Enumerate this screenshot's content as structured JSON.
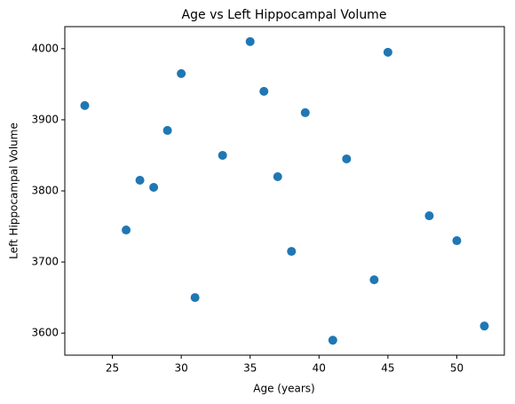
{
  "chart_data": {
    "type": "scatter",
    "title": "Age vs Left Hippocampal Volume",
    "x_label": "Age (years)",
    "y_label": "Left Hippocampal Volume",
    "x": [
      23,
      26,
      27,
      28,
      29,
      30,
      31,
      33,
      35,
      36,
      37,
      38,
      39,
      41,
      42,
      44,
      45,
      48,
      50,
      52
    ],
    "values": [
      3920,
      3745,
      3815,
      3805,
      3885,
      3965,
      3650,
      3850,
      4010,
      3940,
      3820,
      3715,
      3910,
      3590,
      3845,
      3675,
      3995,
      3765,
      3730,
      3610
    ],
    "color": "#1f77b4",
    "xlim": [
      21.55,
      53.45
    ],
    "xticks": [
      25,
      30,
      35,
      40,
      45,
      50
    ],
    "ylim": [
      3569,
      4031
    ],
    "yticks": [
      3600,
      3700,
      3800,
      3900,
      4000
    ]
  }
}
